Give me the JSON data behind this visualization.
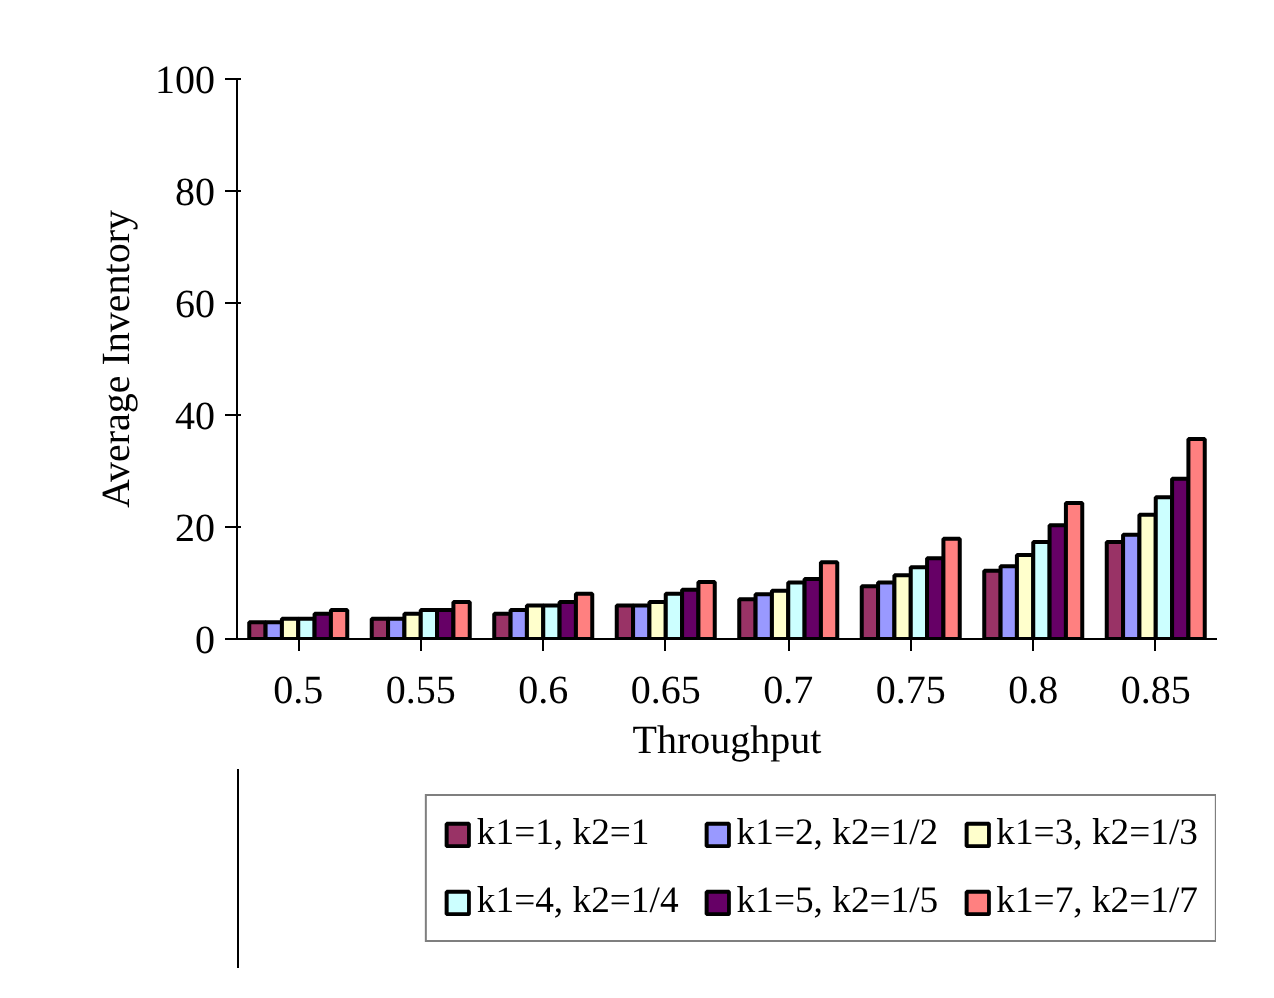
{
  "chart_data": {
    "type": "bar",
    "xlabel": "Throughput",
    "ylabel": "Average Inventory",
    "categories": [
      "0.5",
      "0.55",
      "0.6",
      "0.65",
      "0.7",
      "0.75",
      "0.8",
      "0.85"
    ],
    "series": [
      {
        "name": "k1=1, k2=1",
        "color": "#993366",
        "values": [
          3.0,
          3.6,
          4.5,
          6.0,
          7.1,
          9.4,
          12.2,
          17.3
        ]
      },
      {
        "name": "k1=2, k2=1/2",
        "color": "#9999ff",
        "values": [
          3.0,
          3.6,
          5.2,
          6.0,
          8.0,
          10.1,
          13.0,
          18.6
        ]
      },
      {
        "name": "k1=3, k2=1/3",
        "color": "#ffffcc",
        "values": [
          3.6,
          4.5,
          6.0,
          6.6,
          8.6,
          11.4,
          15.0,
          22.2
        ]
      },
      {
        "name": "k1=4, k2=1/4",
        "color": "#ccffff",
        "values": [
          3.6,
          5.2,
          6.0,
          8.1,
          10.1,
          12.8,
          17.3,
          25.3
        ]
      },
      {
        "name": "k1=5, k2=1/5",
        "color": "#660066",
        "values": [
          4.5,
          5.2,
          6.6,
          8.8,
          10.7,
          14.4,
          20.3,
          28.6
        ]
      },
      {
        "name": "k1=7, k2=1/7",
        "color": "#ff8080",
        "values": [
          5.2,
          6.6,
          8.1,
          10.2,
          13.7,
          17.9,
          24.3,
          35.7
        ]
      }
    ],
    "ylim": [
      0,
      100
    ],
    "yticks": [
      0,
      20,
      40,
      60,
      80,
      100
    ],
    "grid": false,
    "legend": "bottom"
  }
}
